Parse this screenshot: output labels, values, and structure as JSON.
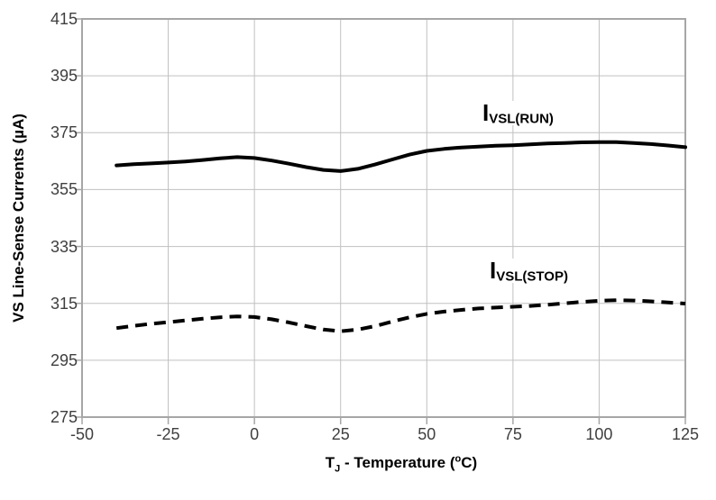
{
  "chart_data": {
    "type": "line",
    "title": "",
    "grid": true,
    "legend_position": "inline-labels-on-plot",
    "x_axis": {
      "label_text": "TJ - Temperature (oC)",
      "label_parts": {
        "main": "T",
        "sub": "J",
        "mid": " - Temperature (",
        "sup": "o",
        "end": "C)"
      },
      "ticks": [
        -50,
        -25,
        0,
        25,
        50,
        75,
        100,
        125
      ],
      "range": [
        -50,
        125
      ]
    },
    "y_axis": {
      "label": "VS Line-Sense Currents (µA)",
      "ticks": [
        275,
        295,
        315,
        335,
        355,
        375,
        395,
        415
      ],
      "range": [
        275,
        415
      ]
    },
    "series": [
      {
        "name": "IVSL(RUN)",
        "label": {
          "main": "I",
          "sub": "VSL(RUN)"
        },
        "line_style": "solid",
        "points": [
          [
            -40,
            363.5
          ],
          [
            -35,
            363.9
          ],
          [
            -30,
            364.2
          ],
          [
            -25,
            364.5
          ],
          [
            -20,
            364.9
          ],
          [
            -15,
            365.4
          ],
          [
            -10,
            366.0
          ],
          [
            -5,
            366.4
          ],
          [
            0,
            366.1
          ],
          [
            5,
            365.2
          ],
          [
            10,
            364.1
          ],
          [
            15,
            362.9
          ],
          [
            20,
            361.9
          ],
          [
            25,
            361.5
          ],
          [
            30,
            362.3
          ],
          [
            35,
            363.8
          ],
          [
            40,
            365.6
          ],
          [
            45,
            367.3
          ],
          [
            50,
            368.6
          ],
          [
            55,
            369.3
          ],
          [
            60,
            369.8
          ],
          [
            65,
            370.1
          ],
          [
            70,
            370.4
          ],
          [
            75,
            370.6
          ],
          [
            80,
            370.9
          ],
          [
            85,
            371.2
          ],
          [
            90,
            371.4
          ],
          [
            95,
            371.6
          ],
          [
            100,
            371.7
          ],
          [
            105,
            371.7
          ],
          [
            110,
            371.4
          ],
          [
            115,
            371.0
          ],
          [
            120,
            370.5
          ],
          [
            125,
            369.9
          ]
        ]
      },
      {
        "name": "IVSL(STOP)",
        "label": {
          "main": "I",
          "sub": "VSL(STOP)"
        },
        "line_style": "dashed",
        "points": [
          [
            -40,
            306.3
          ],
          [
            -35,
            307.1
          ],
          [
            -30,
            307.8
          ],
          [
            -25,
            308.4
          ],
          [
            -20,
            309.0
          ],
          [
            -15,
            309.6
          ],
          [
            -10,
            310.1
          ],
          [
            -5,
            310.4
          ],
          [
            0,
            310.2
          ],
          [
            5,
            309.4
          ],
          [
            10,
            308.3
          ],
          [
            15,
            307.0
          ],
          [
            20,
            305.8
          ],
          [
            25,
            305.2
          ],
          [
            30,
            305.8
          ],
          [
            35,
            307.0
          ],
          [
            40,
            308.6
          ],
          [
            45,
            310.1
          ],
          [
            50,
            311.3
          ],
          [
            55,
            312.1
          ],
          [
            60,
            312.7
          ],
          [
            65,
            313.2
          ],
          [
            70,
            313.5
          ],
          [
            75,
            313.8
          ],
          [
            80,
            314.1
          ],
          [
            85,
            314.5
          ],
          [
            90,
            315.0
          ],
          [
            95,
            315.5
          ],
          [
            100,
            315.9
          ],
          [
            105,
            316.1
          ],
          [
            110,
            316.0
          ],
          [
            115,
            315.7
          ],
          [
            120,
            315.3
          ],
          [
            125,
            314.9
          ]
        ]
      }
    ],
    "colors": {
      "series_line": "#000000",
      "grid_line": "#c0c0c0",
      "axis_border": "#a6a6a6",
      "tick_text": "#3f3f3f",
      "title_text": "#000000",
      "background": "#ffffff"
    }
  }
}
